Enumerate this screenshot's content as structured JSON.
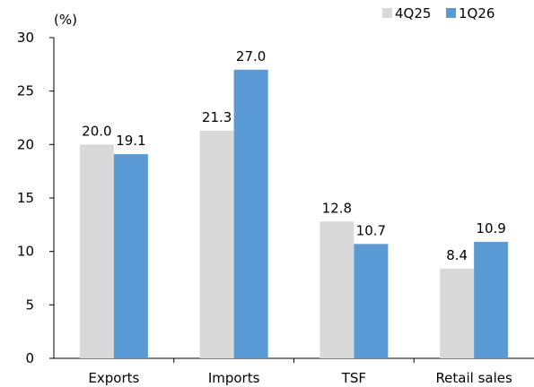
{
  "chart_data": {
    "type": "bar",
    "unit_label": "(%)",
    "categories": [
      "Exports",
      "Imports",
      "TSF",
      "Retail sales"
    ],
    "series": [
      {
        "name": "4Q25",
        "values": [
          20.0,
          21.3,
          12.8,
          8.4
        ],
        "labels": [
          "20.0",
          "21.3",
          "12.8",
          "8.4"
        ],
        "color": "#d9d9d9"
      },
      {
        "name": "1Q26",
        "values": [
          19.1,
          27.0,
          10.7,
          10.9
        ],
        "labels": [
          "19.1",
          "27.0",
          "10.7",
          "10.9"
        ],
        "color": "#5b9bd5"
      }
    ],
    "ylim": [
      0,
      30
    ],
    "yticks": [
      "0",
      "5",
      "10",
      "15",
      "20",
      "25",
      "30"
    ],
    "grid": false,
    "legend_position": "top-right"
  }
}
